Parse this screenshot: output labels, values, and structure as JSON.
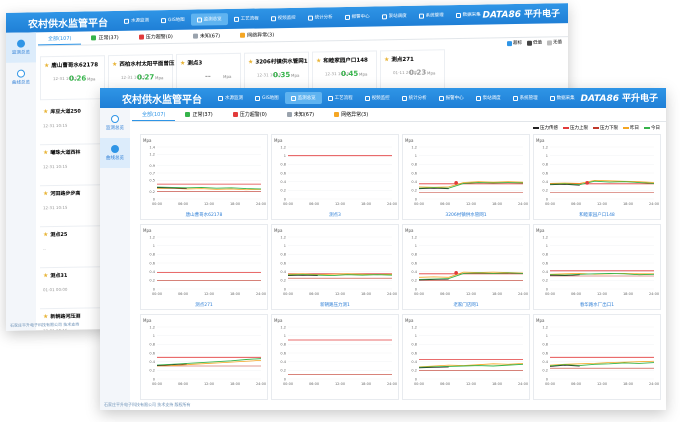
{
  "app": {
    "title": "农村供水监管平台",
    "brand_latin": "DATA86",
    "brand_cn": "平升电子"
  },
  "nav": [
    "水源监测",
    "GIS地图",
    "监测总览",
    "工艺流程",
    "视频监控",
    "统计分析",
    "报警中心",
    "泵站调度",
    "系统管理",
    "数据采集"
  ],
  "sidebar": [
    {
      "label": "监测总览"
    },
    {
      "label": "曲线总览"
    }
  ],
  "back": {
    "tabs": [
      {
        "label": "全部(107)"
      },
      {
        "label": "正常(37)",
        "color": "#35b34a"
      },
      {
        "label": "压力超警(0)",
        "color": "#e23b3b"
      },
      {
        "label": "未知(67)",
        "color": "#9aa3ad"
      },
      {
        "label": "网络异常(3)",
        "color": "#f5a623"
      }
    ],
    "legend": [
      "超标",
      "低值",
      "无值"
    ],
    "cards": [
      {
        "name": "唐山曹哥水62178",
        "time": "12-31 10:15",
        "value": "0.26",
        "unit": "Mpa",
        "color": "#35b34a"
      },
      {
        "name": "西柏水村太阳平面曾压",
        "time": "12-31 10:15",
        "value": "0.27",
        "unit": "Mpa",
        "color": "#35b34a"
      },
      {
        "name": "测点3",
        "time": "",
        "value": "--",
        "unit": "Mpa",
        "color": "#999999"
      },
      {
        "name": "3206村镇供水管网1",
        "time": "12-31 10:15",
        "value": "0.35",
        "unit": "Mpa",
        "color": "#35b34a"
      },
      {
        "name": "和睦家园户口148",
        "time": "12-31 10:15",
        "value": "0.45",
        "unit": "Mpa",
        "color": "#35b34a"
      },
      {
        "name": "测点271",
        "time": "01-11 20:00",
        "value": "0.23",
        "unit": "Mpa",
        "color": "#999999"
      }
    ],
    "list": [
      {
        "name": "库豆大道250",
        "time": "12-31 10:15"
      },
      {
        "name": "曦珠大道西林",
        "time": "12-31 10:15"
      },
      {
        "name": "河田路步步高",
        "time": "12-31 10:15"
      },
      {
        "name": "测点25",
        "time": "--"
      },
      {
        "name": "测点31",
        "time": "01-01 00:00"
      },
      {
        "name": "新朝路河压测",
        "time": "12-31 10:15"
      }
    ],
    "footer": "石家庄平升电子科技有限公司 技术支持"
  },
  "front": {
    "tabs": [
      {
        "label": "全部(107)"
      },
      {
        "label": "正常(37)",
        "color": "#35b34a"
      },
      {
        "label": "压力超警(0)",
        "color": "#e23b3b"
      },
      {
        "label": "未知(67)",
        "color": "#9aa3ad"
      },
      {
        "label": "网络异常(3)",
        "color": "#f5a623"
      }
    ],
    "legend": [
      {
        "label": "压力传感",
        "color": "#222222"
      },
      {
        "label": "压力上限",
        "color": "#e23b3b"
      },
      {
        "label": "压力下限",
        "color": "#c0392b"
      },
      {
        "label": "昨日",
        "color": "#f5a623"
      },
      {
        "label": "今日",
        "color": "#35b34a"
      }
    ],
    "footer": "石家庄平升电子科技有限公司 技术支持 版权所有"
  },
  "chart_data": {
    "type": "line",
    "x_ticks": [
      "00:00",
      "06:00",
      "12:00",
      "18:00",
      "24:00"
    ],
    "ylabel": "Mpa",
    "panels": [
      {
        "title": "唐山曹哥水62178",
        "ylim": [
          0,
          1.4
        ],
        "upper": 0.4,
        "lower": 0.2,
        "today": [
          0.32,
          0.31,
          0.3,
          0.31,
          0.29,
          0.3,
          0.28,
          0.27
        ],
        "yday": [
          0.28,
          0.29,
          0.27,
          0.28,
          0.26,
          0.27,
          0.25,
          0.26
        ],
        "marker": false
      },
      {
        "title": "测点3",
        "ylim": [
          0,
          1.2
        ],
        "upper": 1.0,
        "lower": 0.0,
        "today": [],
        "yday": [],
        "marker": false
      },
      {
        "title": "3206村镇供水管网1",
        "ylim": [
          0,
          1.2
        ],
        "upper": 0.35,
        "lower": 0.15,
        "today": [
          0.25,
          0.26,
          0.25,
          0.36,
          0.38,
          0.37,
          0.38,
          0.37
        ],
        "yday": [
          0.28,
          0.27,
          0.28,
          0.38,
          0.4,
          0.39,
          0.4,
          0.39
        ],
        "marker": true
      },
      {
        "title": "和睦家园户口148",
        "ylim": [
          0,
          1.2
        ],
        "upper": 0.35,
        "lower": 0.15,
        "today": [
          0.34,
          0.35,
          0.33,
          0.41,
          0.39,
          0.4,
          0.38,
          0.36
        ],
        "yday": [
          0.36,
          0.37,
          0.36,
          0.43,
          0.42,
          0.41,
          0.4,
          0.38
        ],
        "marker": true
      },
      {
        "title": "测点271",
        "ylim": [
          0,
          1.2
        ],
        "upper": 0.38,
        "lower": 0.2,
        "today": [],
        "yday": [],
        "marker": false
      },
      {
        "title": "新朝路压力测1",
        "ylim": [
          0,
          1.2
        ],
        "upper": 0.35,
        "lower": 0.25,
        "today": [
          0.32,
          0.33,
          0.32,
          0.31,
          0.33,
          0.32,
          0.33,
          0.32
        ],
        "yday": [
          0.34,
          0.35,
          0.33,
          0.34,
          0.35,
          0.34,
          0.33,
          0.34
        ],
        "marker": false
      },
      {
        "title": "老家门店网1",
        "ylim": [
          0,
          1.2
        ],
        "upper": 0.35,
        "lower": 0.2,
        "today": [
          0.22,
          0.23,
          0.24,
          0.36,
          0.37,
          0.36,
          0.37,
          0.36
        ],
        "yday": [
          0.27,
          0.28,
          0.27,
          0.39,
          0.38,
          0.39,
          0.38,
          0.37
        ],
        "marker": true
      },
      {
        "title": "春华路水厂出口1",
        "ylim": [
          0,
          1.2
        ],
        "upper": 0.42,
        "lower": 0.3,
        "today": [
          0.33,
          0.32,
          0.34,
          0.35,
          0.36,
          0.35,
          0.33,
          0.34
        ],
        "yday": [
          0.34,
          0.35,
          0.36,
          0.34,
          0.35,
          0.36,
          0.35,
          0.35
        ],
        "marker": false
      },
      {
        "title": "",
        "ylim": [
          0,
          1.2
        ],
        "upper": 0.5,
        "lower": 0.3,
        "today": [
          0.32,
          0.34,
          0.36,
          0.38,
          0.4,
          0.42,
          0.45,
          0.47
        ],
        "yday": [
          0.3,
          0.31,
          0.33,
          0.35,
          0.37,
          0.39,
          0.41,
          0.43
        ],
        "marker": false
      },
      {
        "title": "",
        "ylim": [
          0,
          1.2
        ],
        "upper": 0.9,
        "lower": 0.1,
        "today": [],
        "yday": [],
        "marker": false
      },
      {
        "title": "",
        "ylim": [
          0,
          1.2
        ],
        "upper": 0.45,
        "lower": 0.2,
        "today": [
          0.27,
          0.28,
          0.29,
          0.3,
          0.31,
          0.3,
          0.32,
          0.34
        ],
        "yday": [
          0.28,
          0.3,
          0.32,
          0.31,
          0.33,
          0.35,
          0.34,
          0.36
        ],
        "marker": false
      },
      {
        "title": "",
        "ylim": [
          0,
          1.2
        ],
        "upper": 0.5,
        "lower": 0.25,
        "today": [
          0.3,
          0.33,
          0.31,
          0.34,
          0.35,
          0.37,
          0.36,
          0.38
        ],
        "yday": [
          0.32,
          0.34,
          0.35,
          0.36,
          0.38,
          0.39,
          0.4,
          0.41
        ],
        "marker": false
      }
    ]
  }
}
